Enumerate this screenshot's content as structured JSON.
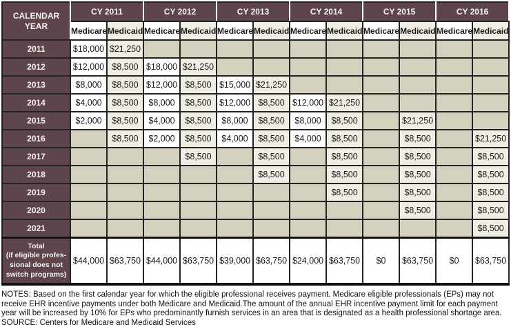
{
  "colors": {
    "header_maroon": "#5e444b",
    "empty_cell_beige": "#d4d2bf",
    "medicaid_cream": "#f0eee4",
    "medicare_white": "#ffffff",
    "border_black": "#232323"
  },
  "table": {
    "corner_header": {
      "line1": "CALENDAR",
      "line2": "YEAR"
    },
    "year_groups": [
      "CY 2011",
      "CY 2012",
      "CY 2013",
      "CY 2014",
      "CY 2015",
      "CY 2016"
    ],
    "program_headers": [
      "Medicare",
      "Medicaid"
    ],
    "rows": [
      {
        "label": "2011",
        "values": [
          "$18,000",
          "$21,250",
          "",
          "",
          "",
          "",
          "",
          "",
          "",
          "",
          "",
          ""
        ]
      },
      {
        "label": "2012",
        "values": [
          "$12,000",
          "$8,500",
          "$18,000",
          "$21,250",
          "",
          "",
          "",
          "",
          "",
          "",
          "",
          ""
        ]
      },
      {
        "label": "2013",
        "values": [
          "$8,000",
          "$8,500",
          "$12,000",
          "$8,500",
          "$15,000",
          "$21,250",
          "",
          "",
          "",
          "",
          "",
          ""
        ]
      },
      {
        "label": "2014",
        "values": [
          "$4,000",
          "$8,500",
          "$8,000",
          "$8,500",
          "$12,000",
          "$8,500",
          "$12,000",
          "$21,250",
          "",
          "",
          "",
          ""
        ]
      },
      {
        "label": "2015",
        "values": [
          "$2,000",
          "$8,500",
          "$4,000",
          "$8,500",
          "$8,000",
          "$8,500",
          "$8,000",
          "$8,500",
          "",
          "$21,250",
          "",
          ""
        ]
      },
      {
        "label": "2016",
        "values": [
          "",
          "$8,500",
          "$2,000",
          "$8,500",
          "$4,000",
          "$8,500",
          "$4,000",
          "$8,500",
          "",
          "$8,500",
          "",
          "$21,250"
        ]
      },
      {
        "label": "2017",
        "values": [
          "",
          "",
          "",
          "$8,500",
          "",
          "$8,500",
          "",
          "$8,500",
          "",
          "$8,500",
          "",
          "$8,500"
        ]
      },
      {
        "label": "2018",
        "values": [
          "",
          "",
          "",
          "",
          "",
          "$8,500",
          "",
          "$8,500",
          "",
          "$8,500",
          "",
          "$8,500"
        ]
      },
      {
        "label": "2019",
        "values": [
          "",
          "",
          "",
          "",
          "",
          "",
          "",
          "$8,500",
          "",
          "$8,500",
          "",
          "$8,500"
        ]
      },
      {
        "label": "2020",
        "values": [
          "",
          "",
          "",
          "",
          "",
          "",
          "",
          "",
          "",
          "$8,500",
          "",
          "$8,500"
        ]
      },
      {
        "label": "2021",
        "values": [
          "",
          "",
          "",
          "",
          "",
          "",
          "",
          "",
          "",
          "",
          "",
          "$8,500"
        ]
      }
    ],
    "total_row": {
      "label_lines": [
        "Total",
        "(if eligible profes-",
        "sional does not",
        "switch programs)"
      ],
      "values": [
        "$44,000",
        "$63,750",
        "$44,000",
        "$63,750",
        "$39,000",
        "$63,750",
        "$24,000",
        "$63,750",
        "$0",
        "$63,750",
        "$0",
        "$63,750"
      ]
    }
  },
  "notes": {
    "notes_text": "NOTES: Based on the first calendar year for which the eligible professional receives payment. Medicare eligible professionals (EPs) may not receive EHR incentive payments under both Medicare and Medicaid.The amount of the annual EHR incentive payment limit for each payment year will be increased by 10% for EPs who predominantly furnish services in an area that is designated as a health professional shortage area.",
    "source_text": "SOURCE: Centers for Medicare and Medicaid Services"
  }
}
